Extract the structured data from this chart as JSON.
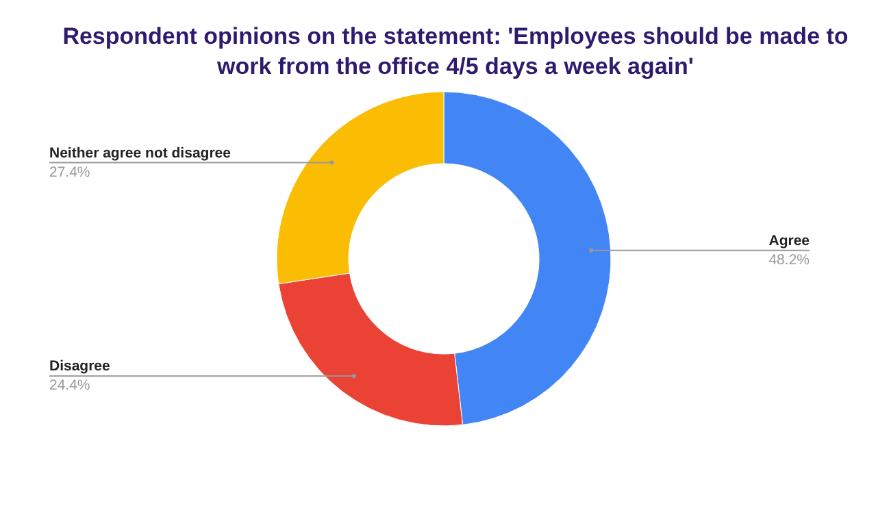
{
  "chart_data": {
    "type": "donut",
    "title": "Respondent opinions on the statement: 'Employees should be made to work from the office 4/5 days a week again'",
    "categories": [
      "Agree",
      "Disagree",
      "Neither agree not disagree"
    ],
    "values": [
      48.2,
      24.4,
      27.4
    ],
    "colors": [
      "#4285f4",
      "#ea4335",
      "#fbbc04"
    ],
    "value_labels": [
      "48.2%",
      "24.4%",
      "27.4%"
    ],
    "legend": false
  }
}
